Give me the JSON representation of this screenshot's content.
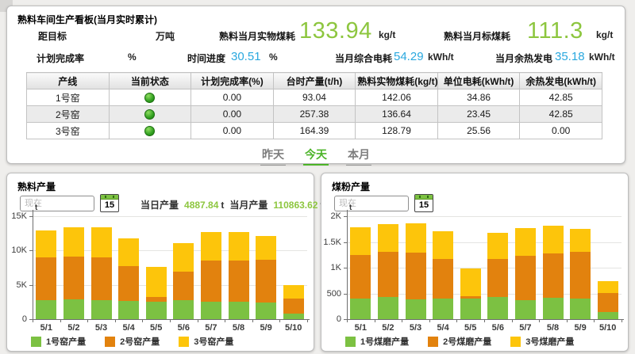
{
  "kanban": {
    "title": "熟料车间生产看板(当月实时累计)",
    "summary_row1": [
      {
        "label": "距目标",
        "value": "",
        "unit": "万吨"
      },
      {
        "label": "熟料当月实物煤耗",
        "value": "133.94",
        "unit": "kg/t"
      },
      {
        "label": "熟料当月标煤耗",
        "value": "111.3",
        "unit": "kg/t"
      }
    ],
    "summary_row2": [
      {
        "label": "计划完成率",
        "value": "",
        "unit": "%"
      },
      {
        "label": "时间进度",
        "value": "30.51",
        "unit": "%"
      },
      {
        "label": "当月综合电耗",
        "value": "54.29",
        "unit": "kWh/t"
      },
      {
        "label": "当月余热发电",
        "value": "35.18",
        "unit": "kWh/t"
      }
    ],
    "table": {
      "headers": [
        "产线",
        "当前状态",
        "计划完成率(%)",
        "台时产量(t/h)",
        "熟料实物煤耗(kg/t)",
        "单位电耗(kWh/t)",
        "余热发电(kWh/t)"
      ],
      "rows": [
        {
          "line": "1号窑",
          "status": "green",
          "cells": [
            "0.00",
            "93.04",
            "142.06",
            "34.86",
            "42.85"
          ]
        },
        {
          "line": "2号窑",
          "status": "green",
          "cells": [
            "0.00",
            "257.38",
            "136.64",
            "23.45",
            "42.85"
          ]
        },
        {
          "line": "3号窑",
          "status": "green",
          "cells": [
            "0.00",
            "164.39",
            "128.79",
            "25.56",
            "0.00"
          ]
        }
      ]
    },
    "tabs": [
      {
        "label": "昨天",
        "active": false
      },
      {
        "label": "今天",
        "active": true
      },
      {
        "label": "本月",
        "active": false
      }
    ]
  },
  "clinker_panel": {
    "title": "熟料产量",
    "date_placeholder": "现在",
    "calendar_day": "15",
    "stats": [
      {
        "label": "当日产量",
        "value": "4887.84",
        "unit": "t"
      },
      {
        "label": "当月产量",
        "value": "110863.62",
        "unit": "t"
      }
    ]
  },
  "coal_panel": {
    "title": "煤粉产量",
    "date_placeholder": "现在",
    "calendar_day": "15"
  },
  "colors": {
    "series_green": "#7cc142",
    "series_orange": "#e2820e",
    "series_yellow": "#fdc50b",
    "value_green": "#8dc63f",
    "value_blue": "#2aa8df",
    "tab_active_green": "#4cb428",
    "status_dot_green": "#2f9e1f"
  },
  "chart_data": [
    {
      "type": "bar",
      "stacked": true,
      "title": "熟料产量",
      "ylabel": "t",
      "xlabel": "",
      "categories": [
        "5/1",
        "5/2",
        "5/3",
        "5/4",
        "5/5",
        "5/6",
        "5/7",
        "5/8",
        "5/9",
        "5/10"
      ],
      "series": [
        {
          "name": "1号窑产量",
          "color_key": "series_green",
          "values": [
            2730,
            2840,
            2730,
            2610,
            2530,
            2770,
            2490,
            2570,
            2450,
            860
          ]
        },
        {
          "name": "2号窑产量",
          "color_key": "series_orange",
          "values": [
            6230,
            6240,
            6190,
            5060,
            660,
            4160,
            5960,
            5960,
            6200,
            2180
          ]
        },
        {
          "name": "3号窑产量",
          "color_key": "series_yellow",
          "values": [
            3970,
            4220,
            4400,
            4060,
            4330,
            4170,
            4210,
            4210,
            3460,
            1950
          ]
        }
      ],
      "ylim": [
        0,
        15000
      ],
      "yticks": [
        {
          "v": 0,
          "label": "0"
        },
        {
          "v": 5000,
          "label": "5K"
        },
        {
          "v": 10000,
          "label": "10K"
        },
        {
          "v": 15000,
          "label": "15K"
        }
      ],
      "grid": true,
      "legend_position": "bottom"
    },
    {
      "type": "bar",
      "stacked": true,
      "title": "煤粉产量",
      "ylabel": "t",
      "xlabel": "",
      "categories": [
        "5/1",
        "5/2",
        "5/3",
        "5/4",
        "5/5",
        "5/6",
        "5/7",
        "5/8",
        "5/9",
        "5/10"
      ],
      "series": [
        {
          "name": "1号煤磨产量",
          "color_key": "series_green",
          "values": [
            400,
            435,
            390,
            400,
            400,
            430,
            375,
            410,
            395,
            135
          ]
        },
        {
          "name": "2号煤磨产量",
          "color_key": "series_orange",
          "values": [
            840,
            870,
            900,
            775,
            40,
            740,
            865,
            855,
            905,
            375
          ]
        },
        {
          "name": "3号煤磨产量",
          "color_key": "series_yellow",
          "values": [
            540,
            535,
            570,
            545,
            540,
            500,
            545,
            545,
            445,
            235
          ]
        }
      ],
      "ylim": [
        0,
        2000
      ],
      "yticks": [
        {
          "v": 0,
          "label": "0"
        },
        {
          "v": 500,
          "label": "500"
        },
        {
          "v": 1000,
          "label": "1K"
        },
        {
          "v": 1500,
          "label": "1.5K"
        },
        {
          "v": 2000,
          "label": "2K"
        }
      ],
      "grid": true,
      "legend_position": "bottom"
    }
  ]
}
